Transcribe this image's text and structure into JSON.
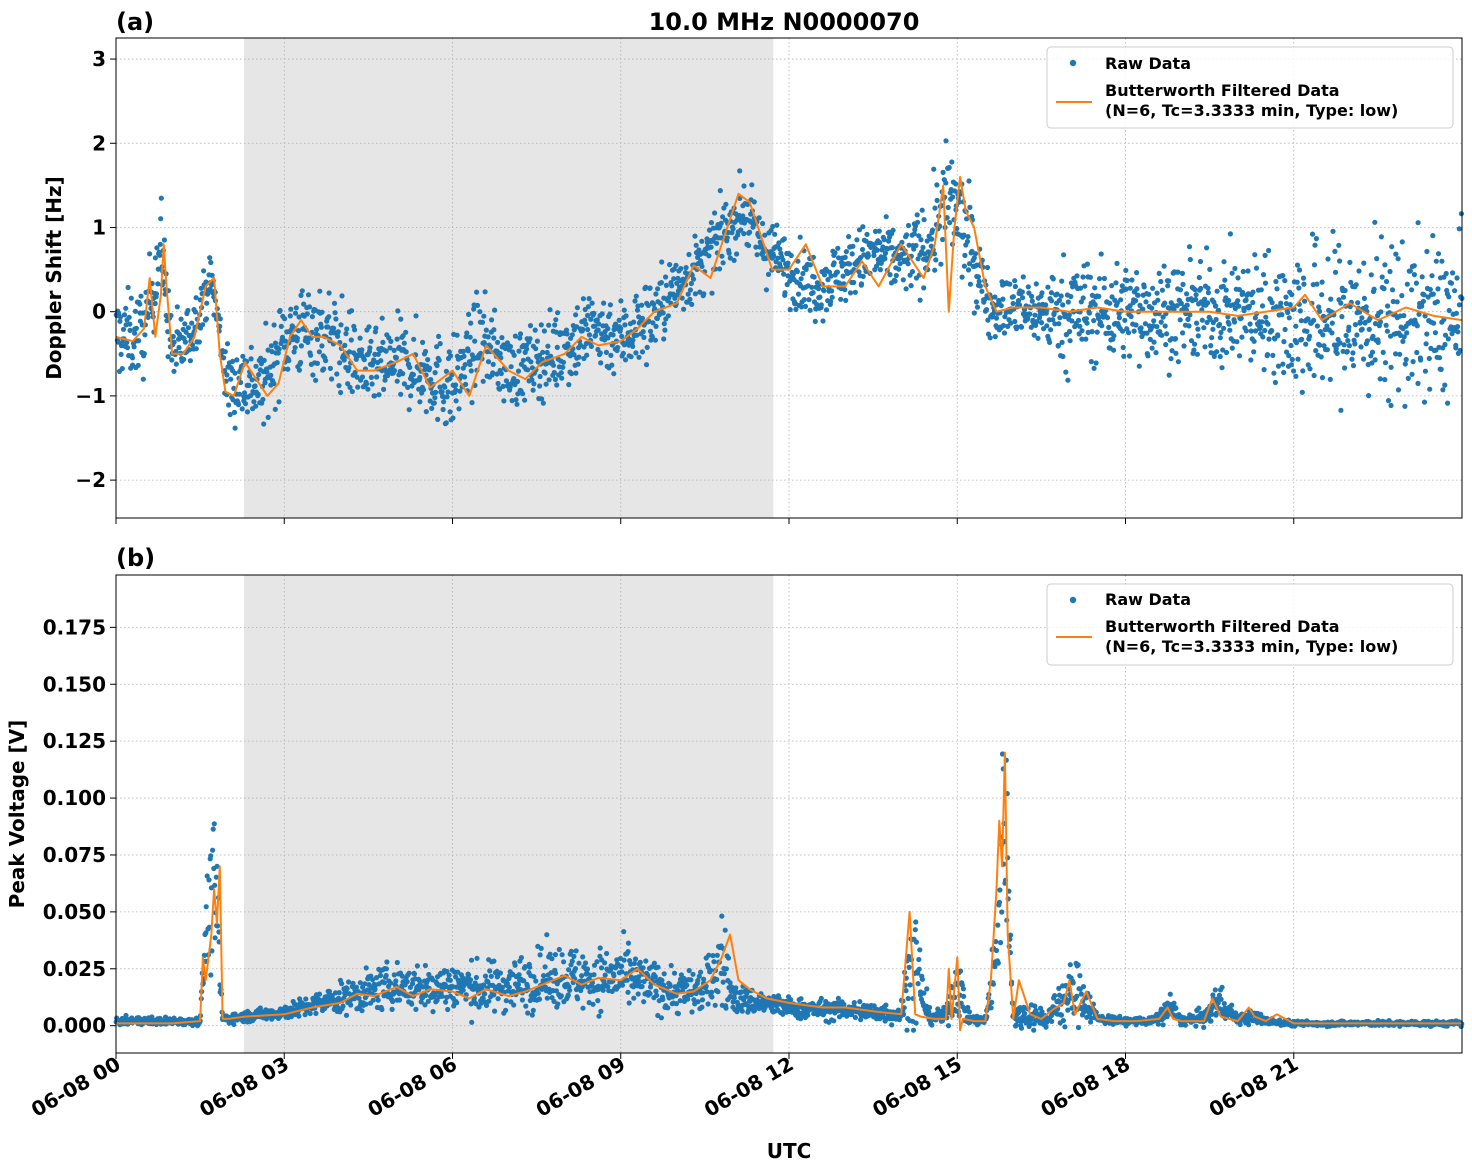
{
  "figure": {
    "title": "10.0 MHz N0000070",
    "xlabel": "UTC",
    "xticks": [
      "06-08 00",
      "06-08 03",
      "06-08 06",
      "06-08 09",
      "06-08 12",
      "06-08 15",
      "06-08 18",
      "06-08 21"
    ],
    "colors": {
      "raw": "#1f77b4",
      "filtered": "#ff7f0e",
      "shade": "#e6e6e6"
    }
  },
  "chart_data": [
    {
      "panel_label": "(a)",
      "type": "scatter",
      "ylabel": "Doppler Shift [Hz]",
      "ylim": [
        -2.45,
        3.25
      ],
      "yticks": [
        "3",
        "2",
        "1",
        "0",
        "−1",
        "−2"
      ],
      "ytick_values": [
        3,
        2,
        1,
        0,
        -1,
        -2
      ],
      "xlim_hours": [
        0,
        24
      ],
      "grid": true,
      "legend_placement": "top-right",
      "shaded_interval_hours": [
        2.28,
        11.72
      ],
      "series": [
        {
          "name": "Raw Data",
          "type": "scatter",
          "x_hours": [
            0,
            0.5,
            0.8,
            1.0,
            1.3,
            1.7,
            2.0,
            2.3,
            2.6,
            3.0,
            3.5,
            4.0,
            4.5,
            5.0,
            5.5,
            6.0,
            6.5,
            7.0,
            7.5,
            8.0,
            8.5,
            9.0,
            9.5,
            10.0,
            10.5,
            10.8,
            11.2,
            11.5,
            12.0,
            12.5,
            13.0,
            13.5,
            14.0,
            14.5,
            14.8,
            15.0,
            15.3,
            15.6,
            16.0,
            16.5,
            17.0,
            17.5,
            18.0,
            18.5,
            19.0,
            19.5,
            20.0,
            20.5,
            21.0,
            21.5,
            22.0,
            22.5,
            23.0,
            23.5,
            24.0
          ],
          "y_center": [
            -0.3,
            -0.25,
            0.8,
            -0.5,
            -0.3,
            0.4,
            -0.9,
            -0.8,
            -0.9,
            -0.3,
            -0.2,
            -0.4,
            -0.7,
            -0.6,
            -0.7,
            -0.9,
            -0.3,
            -0.7,
            -0.6,
            -0.4,
            -0.2,
            -0.3,
            -0.1,
            0.3,
            0.6,
            0.9,
            1.2,
            0.8,
            0.5,
            0.3,
            0.5,
            0.7,
            0.6,
            0.8,
            1.3,
            1.2,
            0.6,
            0.05,
            0.05,
            0.0,
            0.0,
            0.0,
            0.0,
            0.0,
            0.0,
            0.0,
            0.0,
            0.0,
            -0.1,
            -0.1,
            -0.1,
            -0.1,
            -0.1,
            -0.1,
            -0.1
          ],
          "y_spread": [
            0.45,
            0.45,
            0.5,
            0.4,
            0.35,
            0.25,
            0.4,
            0.45,
            0.45,
            0.45,
            0.5,
            0.5,
            0.4,
            0.45,
            0.45,
            0.5,
            0.45,
            0.4,
            0.4,
            0.45,
            0.45,
            0.4,
            0.45,
            0.35,
            0.35,
            0.35,
            0.35,
            0.35,
            0.35,
            0.35,
            0.35,
            0.35,
            0.35,
            0.45,
            0.6,
            0.6,
            0.45,
            0.3,
            0.35,
            0.35,
            0.6,
            0.55,
            0.5,
            0.55,
            0.5,
            0.55,
            0.6,
            0.6,
            0.8,
            0.85,
            0.85,
            0.85,
            0.85,
            0.85,
            0.85
          ]
        },
        {
          "name": "Butterworth Filtered Data\n(N=6, Tc=3.3333 min, Type: low)",
          "type": "line",
          "x_hours": [
            0,
            0.3,
            0.5,
            0.6,
            0.7,
            0.8,
            0.85,
            0.9,
            1.0,
            1.2,
            1.4,
            1.6,
            1.75,
            1.85,
            1.95,
            2.1,
            2.3,
            2.5,
            2.7,
            2.9,
            3.1,
            3.3,
            3.5,
            3.7,
            4.0,
            4.3,
            4.6,
            5.0,
            5.3,
            5.6,
            6.0,
            6.3,
            6.6,
            7.0,
            7.3,
            7.6,
            8.0,
            8.3,
            8.6,
            9.0,
            9.3,
            9.6,
            10.0,
            10.3,
            10.6,
            10.9,
            11.1,
            11.3,
            11.5,
            11.7,
            12.0,
            12.3,
            12.6,
            13.0,
            13.3,
            13.6,
            14.0,
            14.2,
            14.4,
            14.6,
            14.75,
            14.85,
            14.95,
            15.05,
            15.15,
            15.3,
            15.5,
            15.7,
            16.0,
            16.5,
            17.0,
            17.5,
            18.0,
            18.5,
            19.0,
            19.5,
            20.0,
            20.5,
            21.0,
            21.2,
            21.5,
            22.0,
            22.5,
            23.0,
            23.5,
            24.0
          ],
          "y": [
            -0.3,
            -0.35,
            -0.2,
            0.4,
            -0.3,
            0.2,
            0.8,
            0.3,
            -0.5,
            -0.5,
            -0.3,
            0.3,
            0.4,
            -0.5,
            -0.95,
            -1.0,
            -0.6,
            -0.8,
            -1.0,
            -0.85,
            -0.3,
            -0.1,
            -0.3,
            -0.3,
            -0.4,
            -0.7,
            -0.7,
            -0.6,
            -0.5,
            -0.9,
            -0.7,
            -1.0,
            -0.4,
            -0.7,
            -0.8,
            -0.6,
            -0.5,
            -0.3,
            -0.4,
            -0.35,
            -0.2,
            0.0,
            0.1,
            0.55,
            0.4,
            1.0,
            1.4,
            1.3,
            0.9,
            0.5,
            0.5,
            0.8,
            0.3,
            0.3,
            0.6,
            0.3,
            0.8,
            0.6,
            0.4,
            0.8,
            1.5,
            0.0,
            1.0,
            1.6,
            1.2,
            1.0,
            0.3,
            0.0,
            0.05,
            0.05,
            0.0,
            0.05,
            0.0,
            0.0,
            0.0,
            0.0,
            -0.05,
            0.0,
            0.05,
            0.2,
            -0.1,
            0.1,
            -0.1,
            0.05,
            -0.05,
            -0.1
          ]
        }
      ]
    },
    {
      "panel_label": "(b)",
      "type": "scatter",
      "ylabel": "Peak Voltage [V]",
      "ylim": [
        -0.012,
        0.198
      ],
      "yticks": [
        "0.175",
        "0.150",
        "0.125",
        "0.100",
        "0.075",
        "0.050",
        "0.025",
        "0.000"
      ],
      "ytick_values": [
        0.175,
        0.15,
        0.125,
        0.1,
        0.075,
        0.05,
        0.025,
        0.0
      ],
      "xlim_hours": [
        0,
        24
      ],
      "grid": true,
      "legend_placement": "top-right",
      "shaded_interval_hours": [
        2.28,
        11.72
      ],
      "series": [
        {
          "name": "Raw Data",
          "type": "scatter",
          "x_hours": [
            0,
            1.0,
            1.5,
            1.6,
            1.7,
            1.8,
            1.9,
            2.3,
            3.0,
            3.5,
            4.0,
            4.5,
            5.0,
            5.5,
            6.0,
            6.5,
            7.0,
            7.5,
            8.0,
            8.5,
            9.0,
            9.5,
            10.0,
            10.5,
            10.8,
            11.0,
            11.5,
            12.0,
            12.5,
            13.0,
            13.5,
            14.0,
            14.2,
            14.5,
            14.8,
            15.0,
            15.2,
            15.5,
            15.7,
            15.85,
            16.0,
            16.3,
            16.6,
            16.9,
            17.2,
            17.5,
            18.0,
            18.5,
            18.8,
            19.0,
            19.5,
            19.6,
            20.0,
            20.3,
            20.5,
            21.0,
            22.0,
            23.0,
            24.0
          ],
          "y_center": [
            0.002,
            0.002,
            0.002,
            0.04,
            0.06,
            0.05,
            0.003,
            0.004,
            0.006,
            0.009,
            0.012,
            0.015,
            0.018,
            0.016,
            0.018,
            0.016,
            0.018,
            0.02,
            0.022,
            0.02,
            0.022,
            0.018,
            0.015,
            0.016,
            0.03,
            0.012,
            0.01,
            0.008,
            0.007,
            0.007,
            0.006,
            0.005,
            0.03,
            0.004,
            0.004,
            0.02,
            0.003,
            0.002,
            0.03,
            0.1,
            0.004,
            0.005,
            0.003,
            0.012,
            0.015,
            0.003,
            0.002,
            0.002,
            0.008,
            0.002,
            0.004,
            0.012,
            0.003,
            0.004,
            0.002,
            0.001,
            0.001,
            0.001,
            0.001
          ],
          "y_spread": [
            0.0015,
            0.0015,
            0.0015,
            0.015,
            0.03,
            0.03,
            0.002,
            0.002,
            0.003,
            0.004,
            0.006,
            0.008,
            0.009,
            0.009,
            0.01,
            0.01,
            0.01,
            0.012,
            0.012,
            0.012,
            0.012,
            0.01,
            0.009,
            0.009,
            0.02,
            0.006,
            0.005,
            0.004,
            0.004,
            0.004,
            0.004,
            0.004,
            0.03,
            0.003,
            0.003,
            0.015,
            0.002,
            0.002,
            0.02,
            0.05,
            0.004,
            0.006,
            0.003,
            0.012,
            0.012,
            0.002,
            0.0015,
            0.0015,
            0.006,
            0.0015,
            0.004,
            0.008,
            0.002,
            0.003,
            0.0015,
            0.001,
            0.001,
            0.001,
            0.001
          ]
        },
        {
          "name": "Butterworth Filtered Data\n(N=6, Tc=3.3333 min, Type: low)",
          "type": "line",
          "x_hours": [
            0,
            1.0,
            1.5,
            1.55,
            1.6,
            1.7,
            1.75,
            1.8,
            1.85,
            1.9,
            2.0,
            2.3,
            3.0,
            3.5,
            4.0,
            4.3,
            4.6,
            5.0,
            5.3,
            5.6,
            6.0,
            6.3,
            6.6,
            7.0,
            7.3,
            7.6,
            8.0,
            8.3,
            8.6,
            9.0,
            9.3,
            9.6,
            10.0,
            10.3,
            10.6,
            10.8,
            10.95,
            11.1,
            11.3,
            11.6,
            12.0,
            12.3,
            12.6,
            13.0,
            13.3,
            13.6,
            14.0,
            14.15,
            14.25,
            14.35,
            14.6,
            14.8,
            14.85,
            14.9,
            15.0,
            15.05,
            15.1,
            15.3,
            15.5,
            15.6,
            15.7,
            15.75,
            15.8,
            15.85,
            15.9,
            16.0,
            16.1,
            16.3,
            16.5,
            16.7,
            16.9,
            17.0,
            17.1,
            17.3,
            17.5,
            17.8,
            18.2,
            18.6,
            18.75,
            18.85,
            19.0,
            19.4,
            19.55,
            19.7,
            20.0,
            20.2,
            20.3,
            20.5,
            20.7,
            21.0,
            22.0,
            23.0,
            24.0
          ],
          "y": [
            0.001,
            0.001,
            0.002,
            0.03,
            0.02,
            0.04,
            0.06,
            0.045,
            0.07,
            0.003,
            0.003,
            0.004,
            0.005,
            0.008,
            0.01,
            0.014,
            0.013,
            0.017,
            0.013,
            0.016,
            0.015,
            0.012,
            0.016,
            0.013,
            0.015,
            0.018,
            0.022,
            0.018,
            0.021,
            0.02,
            0.025,
            0.018,
            0.014,
            0.015,
            0.02,
            0.03,
            0.04,
            0.02,
            0.016,
            0.012,
            0.01,
            0.009,
            0.008,
            0.008,
            0.007,
            0.006,
            0.005,
            0.05,
            0.005,
            0.004,
            0.003,
            0.003,
            0.025,
            0.003,
            0.03,
            -0.002,
            0.003,
            0.002,
            0.002,
            0.02,
            0.06,
            0.09,
            0.07,
            0.12,
            0.04,
            0.003,
            0.02,
            0.005,
            0.003,
            0.007,
            0.01,
            0.02,
            0.005,
            0.015,
            0.003,
            0.002,
            0.002,
            0.003,
            0.008,
            0.003,
            0.002,
            0.002,
            0.012,
            0.004,
            0.002,
            0.008,
            0.004,
            0.002,
            0.005,
            0.001,
            0.001,
            0.001,
            0.001
          ]
        }
      ]
    }
  ]
}
